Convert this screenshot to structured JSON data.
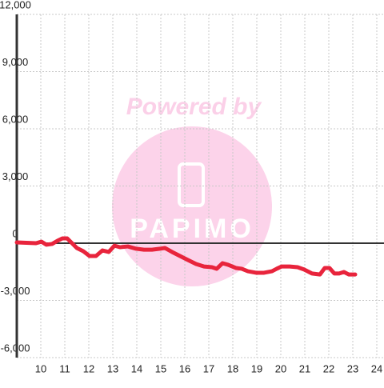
{
  "chart_data": {
    "type": "line",
    "watermark": {
      "line1": "Powered by",
      "line2": "PAPIMO"
    },
    "xlim": [
      9,
      24.3
    ],
    "ylim": [
      -6000,
      12000
    ],
    "xticks": [
      10,
      11,
      12,
      13,
      14,
      15,
      16,
      17,
      18,
      19,
      20,
      21,
      22,
      23,
      24
    ],
    "yticks": [
      {
        "value": -6000,
        "label": "-6,000"
      },
      {
        "value": -3000,
        "label": "-3,000"
      },
      0,
      {
        "value": 3000,
        "label": "3,000"
      },
      {
        "value": 6000,
        "label": "6,000"
      },
      {
        "value": 9000,
        "label": "9,000"
      },
      {
        "value": 12000,
        "label": "12,000"
      }
    ],
    "grid": true,
    "series": [
      {
        "color": "#e8243c",
        "x": [
          9.0,
          9.8,
          10.03,
          10.23,
          10.47,
          10.7,
          10.9,
          11.1,
          11.3,
          11.5,
          11.77,
          12.03,
          12.3,
          12.57,
          12.83,
          13.07,
          13.3,
          13.63,
          13.97,
          14.3,
          14.63,
          14.97,
          15.17,
          15.47,
          15.8,
          16.13,
          16.47,
          16.8,
          17.13,
          17.33,
          17.57,
          17.8,
          18.13,
          18.37,
          18.63,
          18.97,
          19.3,
          19.63,
          19.83,
          20.03,
          20.37,
          20.7,
          20.97,
          21.3,
          21.63,
          21.83,
          22.03,
          22.23,
          22.43,
          22.63,
          22.83,
          23.1
        ],
        "values": [
          40,
          0,
          80,
          -80,
          -40,
          130,
          250,
          250,
          0,
          -250,
          -420,
          -670,
          -670,
          -380,
          -460,
          -130,
          -210,
          -170,
          -290,
          -340,
          -340,
          -290,
          -250,
          -460,
          -670,
          -880,
          -1090,
          -1220,
          -1260,
          -1340,
          -1050,
          -1130,
          -1300,
          -1340,
          -1470,
          -1550,
          -1550,
          -1470,
          -1340,
          -1220,
          -1220,
          -1260,
          -1380,
          -1590,
          -1640,
          -1300,
          -1300,
          -1590,
          -1590,
          -1510,
          -1640,
          -1640
        ]
      }
    ]
  }
}
